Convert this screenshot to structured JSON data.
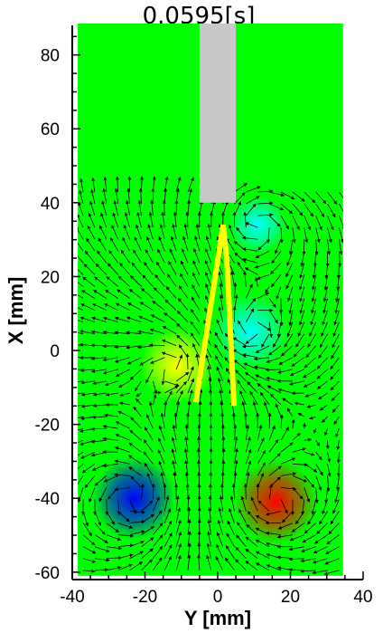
{
  "chart_data": {
    "type": "heatmap",
    "title": "0.0595[s]",
    "xlabel": "Y [mm]",
    "ylabel": "X [mm]",
    "xlim": [
      -40,
      40
    ],
    "ylim": [
      -62,
      88
    ],
    "x_ticks": [
      "-40",
      "-20",
      "0",
      "20",
      "40"
    ],
    "y_ticks": [
      "-60",
      "-40",
      "-20",
      "0",
      "20",
      "40",
      "60",
      "80"
    ],
    "field_extent": {
      "y": [
        -38.5,
        34.5
      ],
      "x": [
        -61,
        88.5
      ]
    },
    "background_color": "#00ff00",
    "vortices": [
      {
        "y": -23,
        "x": -40,
        "radius": 10,
        "color": "#0000ff",
        "spin": "ccw"
      },
      {
        "y": 16,
        "x": -41,
        "radius": 10,
        "color": "#ff0000",
        "spin": "cw"
      },
      {
        "y": -11,
        "x": -4,
        "radius": 9,
        "color": "#ffff00",
        "spin": "ccw"
      },
      {
        "y": 9,
        "x": 5,
        "radius": 9,
        "color": "#00ffff",
        "spin": "cw"
      },
      {
        "y": 11,
        "x": 34,
        "radius": 7,
        "color": "#00ffff",
        "spin": "cw"
      }
    ],
    "body": {
      "y": [
        -5,
        5
      ],
      "x": [
        40,
        88.5
      ],
      "color": "#c8c8c8"
    },
    "fin": {
      "points": [
        [
          -6,
          -14
        ],
        [
          1.5,
          34
        ],
        [
          2.5,
          25
        ],
        [
          4.5,
          -15
        ]
      ],
      "color": "#ffff00"
    }
  }
}
